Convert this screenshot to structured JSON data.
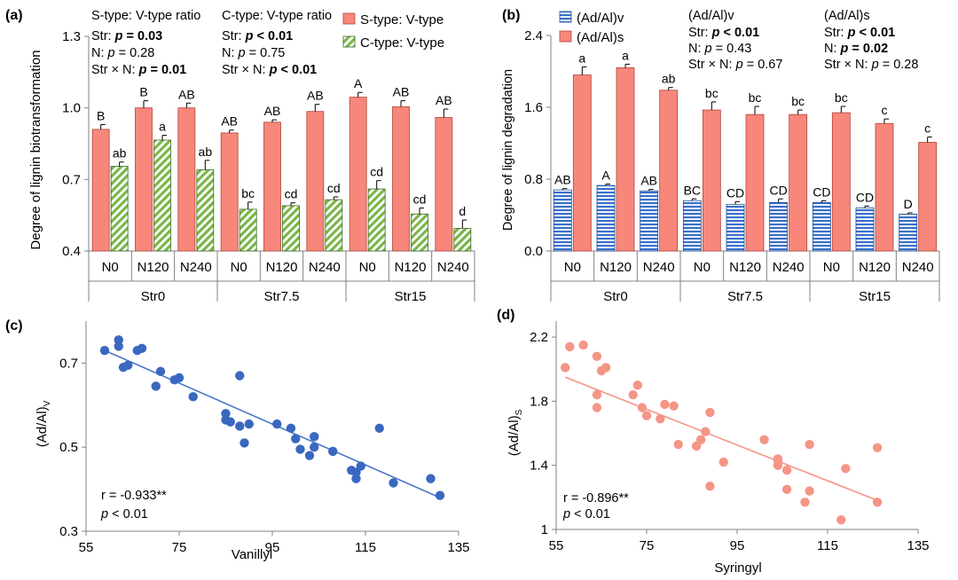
{
  "colors": {
    "s_bar": "#f8877b",
    "s_edge": "#b04438",
    "c_fill": "#7ab648",
    "v_fill": "#3870c8",
    "s_fill": "#f8877b",
    "point_c": "#3a67c0",
    "line_c": "#4a78c8",
    "point_d": "#f49586",
    "line_d": "#f49586",
    "axis": "#808080"
  },
  "chart_data": [
    {
      "panel": "(a)",
      "type": "bar",
      "ylabel": "Degree of lignin biotransformation",
      "ylim": [
        0.4,
        1.3
      ],
      "yticks": [
        "0.4",
        "0.7",
        "1.0",
        "1.3"
      ],
      "categories": [
        "N0",
        "N120",
        "N240",
        "N0",
        "N120",
        "N240",
        "N0",
        "N120",
        "N240"
      ],
      "groups": [
        "Str0",
        "Str7.5",
        "Str15"
      ],
      "series": [
        {
          "name": "S-type: V-type",
          "values": [
            0.91,
            1.0,
            1.0,
            0.895,
            0.94,
            0.985,
            1.045,
            1.005,
            0.96
          ],
          "errors": [
            0.02,
            0.03,
            0.02,
            0.012,
            0.01,
            0.03,
            0.02,
            0.025,
            0.035
          ],
          "labels": [
            "B",
            "B",
            "AB",
            "AB",
            "AB",
            "AB",
            "A",
            "AB",
            "AB"
          ]
        },
        {
          "name": "C-type: V-type",
          "values": [
            0.755,
            0.865,
            0.74,
            0.575,
            0.59,
            0.615,
            0.66,
            0.555,
            0.495
          ],
          "errors": [
            0.018,
            0.02,
            0.04,
            0.03,
            0.012,
            0.012,
            0.035,
            0.025,
            0.035
          ],
          "labels": [
            "ab",
            "a",
            "ab",
            "bc",
            "cd",
            "cd",
            "cd",
            "cd",
            "d"
          ]
        }
      ],
      "stats": [
        {
          "title": "S-type: V-type ratio",
          "str_label": "Str: ",
          "str_p": "p",
          "str_val": " = 0.03",
          "n_label": "N: ",
          "n_p": "p",
          "n_val": " = 0.28",
          "sxn_label": "Str × N: ",
          "sxn_p": "p",
          "sxn_val": " = 0.01"
        },
        {
          "title": "C-type: V-type ratio",
          "str_label": "Str: ",
          "str_p": "p",
          "str_val": " < 0.01",
          "n_label": "N: ",
          "n_p": "p",
          "n_val": " = 0.75",
          "sxn_label": "Str × N: ",
          "sxn_p": "p",
          "sxn_val": " < 0.01"
        }
      ]
    },
    {
      "panel": "(b)",
      "type": "bar",
      "ylabel": "Degree of lignin degradation",
      "ylim": [
        0.0,
        2.4
      ],
      "yticks": [
        "0.0",
        "0.8",
        "1.6",
        "2.4"
      ],
      "categories": [
        "N0",
        "N120",
        "N240",
        "N0",
        "N120",
        "N240",
        "N0",
        "N120",
        "N240"
      ],
      "groups": [
        "Str0",
        "Str7.5",
        "Str15"
      ],
      "series": [
        {
          "name": "(Ad/Al)v",
          "values": [
            0.68,
            0.73,
            0.67,
            0.56,
            0.52,
            0.54,
            0.54,
            0.48,
            0.41
          ],
          "errors": [
            0.015,
            0.015,
            0.015,
            0.02,
            0.03,
            0.04,
            0.02,
            0.02,
            0.015
          ],
          "labels": [
            "AB",
            "A",
            "AB",
            "BC",
            "CD",
            "CD",
            "CD",
            "CD",
            "D"
          ]
        },
        {
          "name": "(Ad/Al)s",
          "values": [
            1.96,
            2.04,
            1.79,
            1.57,
            1.52,
            1.52,
            1.54,
            1.42,
            1.21
          ],
          "errors": [
            0.09,
            0.04,
            0.03,
            0.09,
            0.09,
            0.05,
            0.07,
            0.05,
            0.06
          ],
          "labels": [
            "a",
            "a",
            "ab",
            "bc",
            "bc",
            "bc",
            "bc",
            "c",
            "c"
          ]
        }
      ],
      "stats": [
        {
          "title": "(Ad/Al)v",
          "str_label": "Str: ",
          "str_p": "p",
          "str_val": " < 0.01",
          "n_label": "N: ",
          "n_p": "p",
          "n_val": " = 0.43",
          "sxn_label": "Str × N: ",
          "sxn_p": "p",
          "sxn_val": " = 0.67"
        },
        {
          "title": "(Ad/Al)s",
          "str_label": "Str: ",
          "str_p": "p",
          "str_val": " < 0.01",
          "n_label": "N: ",
          "n_p": "p",
          "n_val": " = 0.02",
          "sxn_label": "Str × N: ",
          "sxn_p": "p",
          "sxn_val": " = 0.28"
        }
      ]
    },
    {
      "panel": "(c)",
      "type": "scatter",
      "xlabel": "Vanillyl",
      "ylabel_main": "(Ad/Al)",
      "ylabel_sub": "V",
      "xlim": [
        55,
        135
      ],
      "ylim": [
        0.3,
        0.8
      ],
      "xticks": [
        "55",
        "75",
        "95",
        "115",
        "135"
      ],
      "yticks": [
        "0.3",
        "0.5",
        "0.7"
      ],
      "r_text": "r = -0.933**",
      "p_sym": "p",
      "p_text": " < 0.01",
      "fit": [
        [
          59,
          0.73
        ],
        [
          131,
          0.38
        ]
      ],
      "points": [
        [
          59,
          0.73
        ],
        [
          62,
          0.74
        ],
        [
          62,
          0.755
        ],
        [
          63,
          0.69
        ],
        [
          64,
          0.695
        ],
        [
          66,
          0.73
        ],
        [
          67,
          0.735
        ],
        [
          70,
          0.645
        ],
        [
          71,
          0.68
        ],
        [
          74,
          0.66
        ],
        [
          75,
          0.665
        ],
        [
          78,
          0.62
        ],
        [
          85,
          0.58
        ],
        [
          85,
          0.565
        ],
        [
          86,
          0.56
        ],
        [
          88,
          0.55
        ],
        [
          88,
          0.67
        ],
        [
          89,
          0.51
        ],
        [
          90,
          0.555
        ],
        [
          96,
          0.555
        ],
        [
          99,
          0.545
        ],
        [
          100,
          0.52
        ],
        [
          101,
          0.495
        ],
        [
          103,
          0.48
        ],
        [
          104,
          0.525
        ],
        [
          104,
          0.5
        ],
        [
          108,
          0.49
        ],
        [
          112,
          0.445
        ],
        [
          113,
          0.44
        ],
        [
          113,
          0.425
        ],
        [
          114,
          0.455
        ],
        [
          118,
          0.545
        ],
        [
          121,
          0.415
        ],
        [
          129,
          0.425
        ],
        [
          131,
          0.385
        ]
      ]
    },
    {
      "panel": "(d)",
      "type": "scatter",
      "xlabel": "Syringyl",
      "ylabel_main": "(Ad/Al)",
      "ylabel_sub": "S",
      "xlim": [
        55,
        135
      ],
      "ylim": [
        1.0,
        2.3
      ],
      "xticks": [
        "55",
        "75",
        "95",
        "115",
        "135"
      ],
      "yticks": [
        "1",
        "1.4",
        "1.8",
        "2.2"
      ],
      "r_text": "r = -0.896**",
      "p_sym": "p",
      "p_text": " < 0.01",
      "fit": [
        [
          57,
          1.95
        ],
        [
          127,
          1.17
        ]
      ],
      "points": [
        [
          57,
          2.01
        ],
        [
          58,
          2.14
        ],
        [
          61,
          2.15
        ],
        [
          64,
          2.08
        ],
        [
          64,
          1.84
        ],
        [
          64,
          1.76
        ],
        [
          65,
          1.99
        ],
        [
          66,
          2.01
        ],
        [
          72,
          1.84
        ],
        [
          73,
          1.9
        ],
        [
          74,
          1.76
        ],
        [
          75,
          1.71
        ],
        [
          78,
          1.69
        ],
        [
          79,
          1.78
        ],
        [
          81,
          1.77
        ],
        [
          82,
          1.53
        ],
        [
          86,
          1.52
        ],
        [
          87,
          1.56
        ],
        [
          88,
          1.61
        ],
        [
          89,
          1.27
        ],
        [
          89,
          1.73
        ],
        [
          92,
          1.42
        ],
        [
          101,
          1.56
        ],
        [
          104,
          1.4
        ],
        [
          104,
          1.43
        ],
        [
          104,
          1.44
        ],
        [
          106,
          1.37
        ],
        [
          106,
          1.25
        ],
        [
          110,
          1.17
        ],
        [
          111,
          1.53
        ],
        [
          111,
          1.24
        ],
        [
          118,
          1.06
        ],
        [
          119,
          1.38
        ],
        [
          126,
          1.17
        ],
        [
          126,
          1.51
        ]
      ]
    }
  ]
}
